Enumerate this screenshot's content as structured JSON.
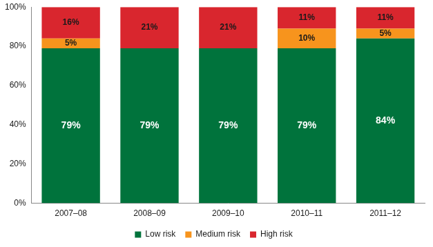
{
  "chart_data": {
    "type": "bar",
    "stacked": true,
    "data_labels": true,
    "grid": false,
    "legend": "bottom",
    "categories": [
      "2007–08",
      "2008–09",
      "2009–10",
      "2010–11",
      "2011–12"
    ],
    "series": [
      {
        "name": "Low risk",
        "color": "#00733c",
        "values": [
          79,
          79,
          79,
          79,
          84
        ],
        "value_labels": [
          "79%",
          "79%",
          "79%",
          "79%",
          "84%"
        ]
      },
      {
        "name": "Medium risk",
        "color": "#f7941d",
        "values": [
          5,
          null,
          null,
          10,
          5
        ],
        "value_labels": [
          "5%",
          null,
          null,
          "10%",
          "5%"
        ]
      },
      {
        "name": "High risk",
        "color": "#d9262e",
        "values": [
          16,
          21,
          21,
          11,
          11
        ],
        "value_labels": [
          "16%",
          "21%",
          "21%",
          "11%",
          "11%"
        ]
      }
    ],
    "ylim": [
      0,
      100
    ],
    "yticks": [
      {
        "value": 0,
        "label": "0%"
      },
      {
        "value": 20,
        "label": "20%"
      },
      {
        "value": 40,
        "label": "40%"
      },
      {
        "value": 60,
        "label": "60%"
      },
      {
        "value": 80,
        "label": "80%"
      },
      {
        "value": 100,
        "label": "100%"
      }
    ]
  }
}
